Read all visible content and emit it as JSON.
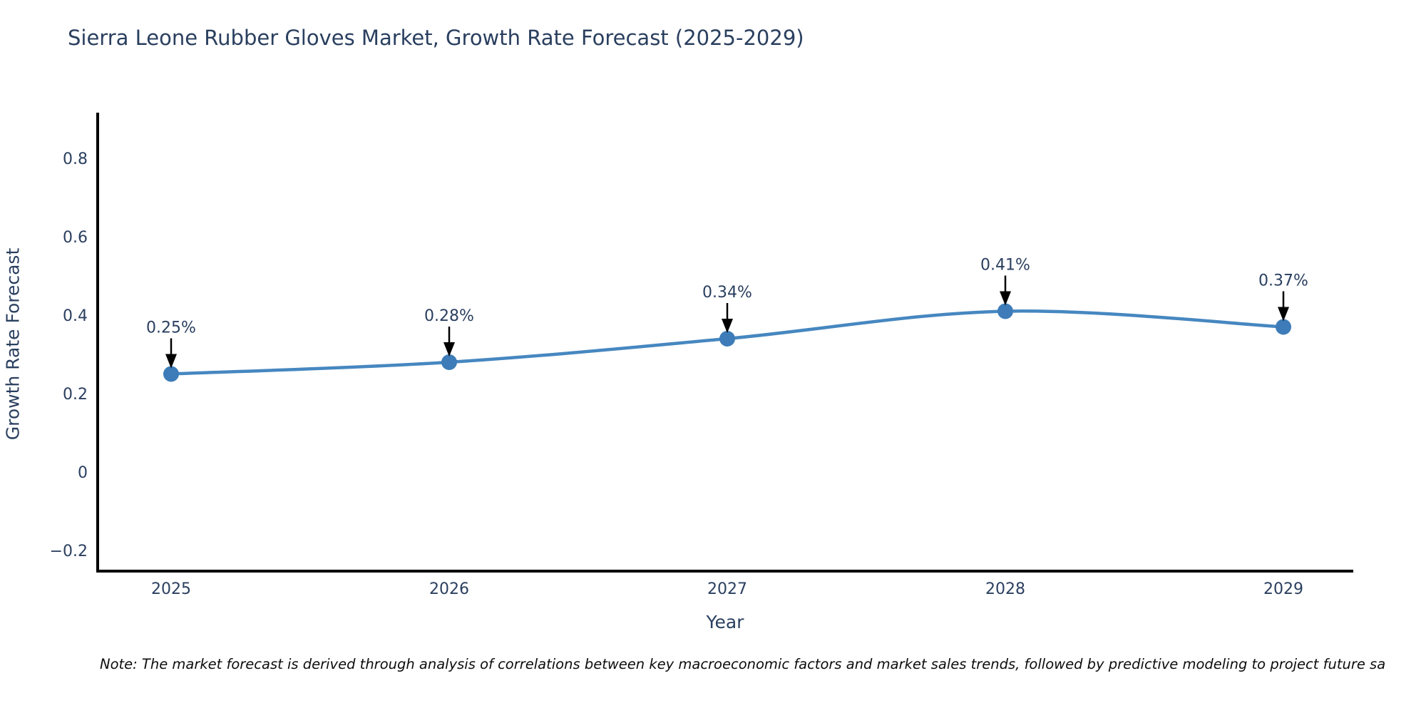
{
  "title": "Sierra Leone Rubber Gloves Market, Growth Rate Forecast (2025-2029)",
  "note": "Note: The market forecast is derived through analysis of correlations between key macroeconomic factors and market sales trends, followed by predictive modeling to project future sa",
  "chart_data": {
    "type": "line",
    "title": "Sierra Leone Rubber Gloves Market, Growth Rate Forecast (2025-2029)",
    "xlabel": "Year",
    "ylabel": "Growth Rate Forecast",
    "x": [
      "2025",
      "2026",
      "2027",
      "2028",
      "2029"
    ],
    "values": [
      0.25,
      0.28,
      0.34,
      0.41,
      0.37
    ],
    "point_labels": [
      "0.25%",
      "0.28%",
      "0.34%",
      "0.41%",
      "0.37%"
    ],
    "yticks": [
      -0.2,
      0,
      0.2,
      0.4,
      0.6,
      0.8
    ],
    "ylim": [
      -0.253,
      0.917
    ],
    "line_shape": "spline",
    "grid": false,
    "legend_position": "none",
    "colors": {
      "line": "#4687c0",
      "marker": "#3d7cb8",
      "axis": "#000000",
      "tick_text": "#2a3f5f",
      "annotation_text": "#2a3f5f",
      "annotation_arrow": "#000000",
      "title_text": "#2a3f5f"
    }
  }
}
